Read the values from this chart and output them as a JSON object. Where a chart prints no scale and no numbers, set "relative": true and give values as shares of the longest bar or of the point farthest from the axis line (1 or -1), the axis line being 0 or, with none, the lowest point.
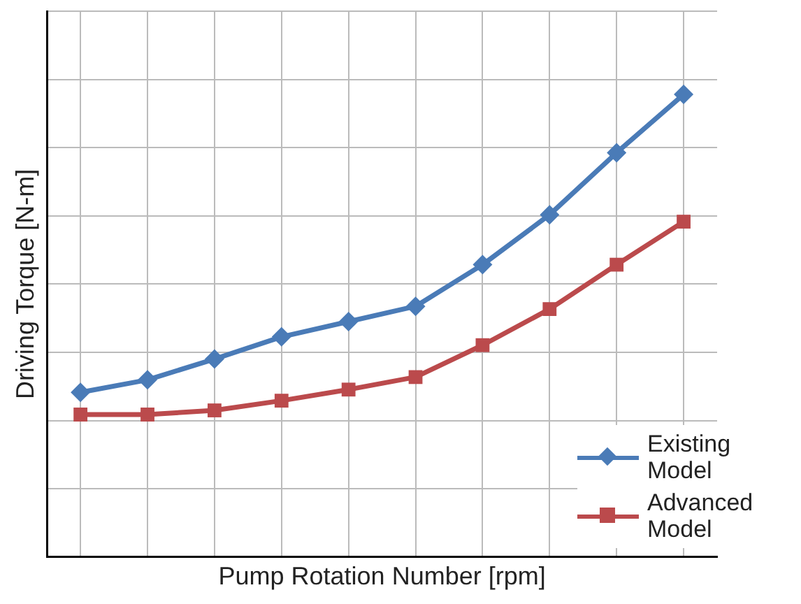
{
  "chart_data": {
    "type": "line",
    "xlabel": "Pump Rotation Number [rpm]",
    "ylabel": "Driving Torque [N-m]",
    "relative": true,
    "grid": true,
    "legend": "bottom right",
    "line_style": "solid",
    "categories": [
      null,
      null,
      null,
      null,
      null,
      null,
      null,
      null,
      null,
      null
    ],
    "series": [
      {
        "name": "Existing Model",
        "color": "#4a7bb7",
        "marker": "diamond",
        "values": [
          0.356,
          0.383,
          0.428,
          0.476,
          0.509,
          0.542,
          0.632,
          0.74,
          0.874,
          1
        ]
      },
      {
        "name": "Advanced Model",
        "color": "#bb4a4c",
        "marker": "square",
        "values": [
          0.308,
          0.308,
          0.317,
          0.338,
          0.362,
          0.389,
          0.458,
          0.536,
          0.632,
          0.725
        ]
      }
    ]
  }
}
